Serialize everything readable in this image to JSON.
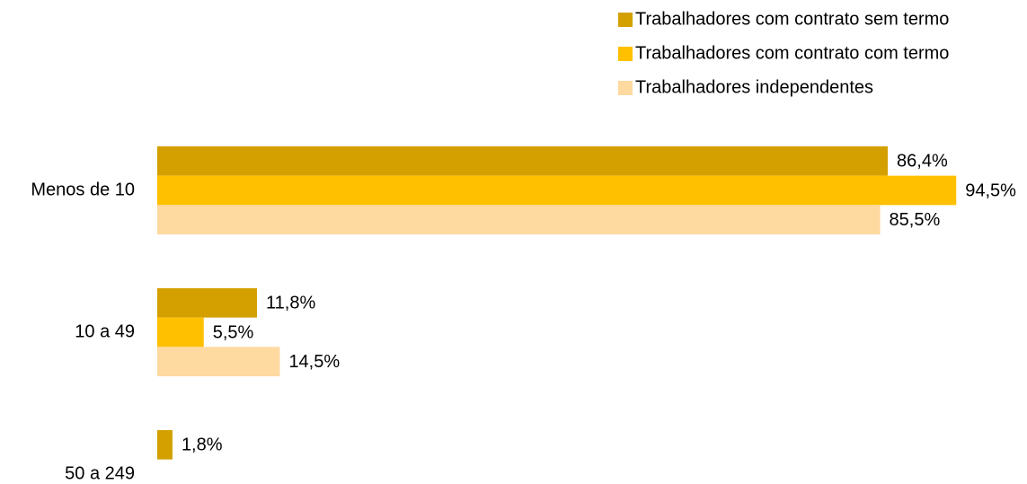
{
  "chart_data": {
    "type": "hbar",
    "categories": [
      "Menos de 10",
      "10 a 49",
      "50 a 249"
    ],
    "series": [
      {
        "name": "Trabalhadores com contrato sem termo",
        "color": "#d4a000",
        "values": [
          86.4,
          11.8,
          1.8
        ],
        "value_labels": [
          "86,4%",
          "11,8%",
          "1,8%"
        ]
      },
      {
        "name": "Trabalhadores com contrato com termo",
        "color": "#ffc000",
        "values": [
          94.5,
          5.5,
          null
        ],
        "value_labels": [
          "94,5%",
          "5,5%",
          null
        ]
      },
      {
        "name": "Trabalhadores independentes",
        "color": "#fed9a0",
        "values": [
          85.5,
          14.5,
          null
        ],
        "value_labels": [
          "85,5%",
          "14,5%",
          null
        ]
      }
    ],
    "xlim": [
      0,
      100
    ],
    "legend": "top-right"
  }
}
